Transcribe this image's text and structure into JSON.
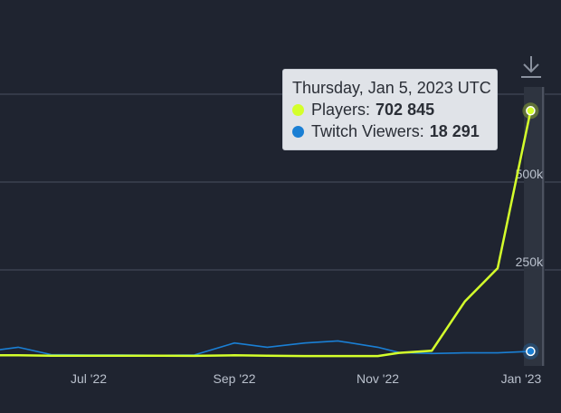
{
  "chart_data": {
    "type": "line",
    "x_ticks": [
      "Jul '22",
      "Sep '22",
      "Nov '22",
      "Jan '23"
    ],
    "y_ticks": [
      "250k",
      "500k"
    ],
    "ylim": [
      0,
      750000
    ],
    "grid": true,
    "series": [
      {
        "name": "Players",
        "color": "#d4ff2b",
        "x": [
          "2022-05-01",
          "2022-05-15",
          "2022-06-01",
          "2022-06-15",
          "2022-07-01",
          "2022-07-15",
          "2022-08-01",
          "2022-08-15",
          "2022-09-01",
          "2022-09-15",
          "2022-10-01",
          "2022-10-15",
          "2022-11-01",
          "2022-11-10",
          "2022-11-24",
          "2022-12-08",
          "2022-12-22",
          "2023-01-05"
        ],
        "values": [
          8000,
          7000,
          7000,
          6000,
          6000,
          6000,
          6000,
          5500,
          7000,
          6000,
          5000,
          5000,
          5000,
          14000,
          20000,
          160000,
          255000,
          702845
        ]
      },
      {
        "name": "Twitch Viewers",
        "color": "#1a7fd4",
        "x": [
          "2022-05-01",
          "2022-05-15",
          "2022-06-01",
          "2022-06-15",
          "2022-07-01",
          "2022-07-15",
          "2022-08-01",
          "2022-08-15",
          "2022-09-01",
          "2022-09-15",
          "2022-10-01",
          "2022-10-15",
          "2022-11-01",
          "2022-11-10",
          "2022-11-24",
          "2022-12-08",
          "2022-12-22",
          "2023-01-05"
        ],
        "values": [
          38000,
          15000,
          30000,
          9000,
          8000,
          8000,
          7000,
          8000,
          42000,
          30000,
          42000,
          48000,
          30000,
          15000,
          12000,
          14000,
          14000,
          18291
        ]
      }
    ]
  },
  "tooltip": {
    "date": "Thursday, Jan 5, 2023 UTC",
    "players_label": "Players:",
    "players_value": "702 845",
    "twitch_label": "Twitch Viewers:",
    "twitch_value": "18 291"
  },
  "icons": {
    "download": "download-icon"
  }
}
